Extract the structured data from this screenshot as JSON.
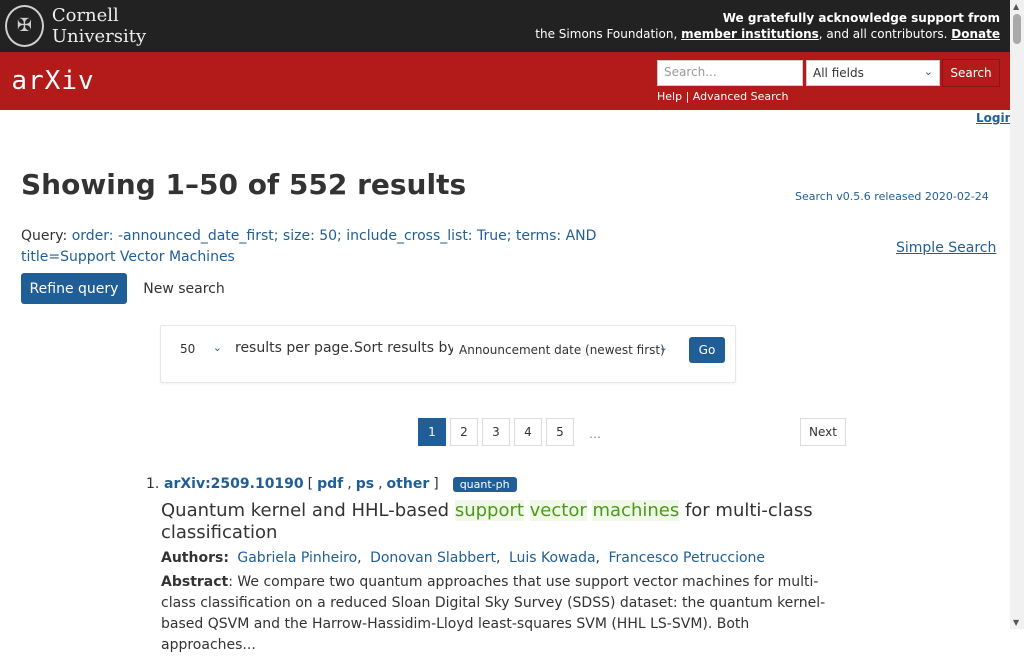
{
  "topbar": {
    "institution": "Cornell University",
    "ack_line1": "We gratefully acknowledge support from",
    "ack_line2_prefix": "the Simons Foundation,",
    "member_link": "member institutions",
    "ack_line2_mid": ", and all contributors.",
    "donate": "Donate"
  },
  "header": {
    "logo": "arXiv",
    "search_placeholder": "Search...",
    "field_select": "All fields",
    "search_button": "Search",
    "help": "Help",
    "separator": "|",
    "advanced": "Advanced Search",
    "login": "Login"
  },
  "main": {
    "title": "Showing 1–50 of 552 results",
    "version": "Search v0.5.6 released 2020-02-24",
    "query_label": "Query:",
    "query_text": "order: -announced_date_first; size: 50; include_cross_list: True; terms: AND title=Support Vector Machines",
    "simple_search": "Simple Search",
    "refine": "Refine query",
    "new_search": "New search"
  },
  "controls": {
    "size": "50",
    "per_page": "results per page.",
    "sort_label": "Sort results by",
    "sort_value": "Announcement date (newest first)",
    "go": "Go"
  },
  "pagination": {
    "pages": [
      "1",
      "2",
      "3",
      "4",
      "5"
    ],
    "ellipsis": "…",
    "next": "Next"
  },
  "result": {
    "number": "1.",
    "id": "arXiv:2509.10190",
    "links": [
      "pdf",
      "ps",
      "other"
    ],
    "category": "quant-ph",
    "title_pre": "Quantum kernel and HHL-based ",
    "title_hl": [
      "support",
      "vector",
      "machines"
    ],
    "title_post": " for multi-class classification",
    "authors_label": "Authors:",
    "authors": [
      "Gabriela Pinheiro",
      "Donovan Slabbert",
      "Luis Kowada",
      "Francesco Petruccione"
    ],
    "abstract_label": "Abstract",
    "abstract": ": We compare two quantum approaches that use support vector machines for multi-class classification on a reduced Sloan Digital Sky Survey (SDSS) dataset: the quantum kernel-based QSVM and the Harrow-Hassidim-Lloyd least-squares SVM (HHL LS-SVM). Both approaches..."
  }
}
